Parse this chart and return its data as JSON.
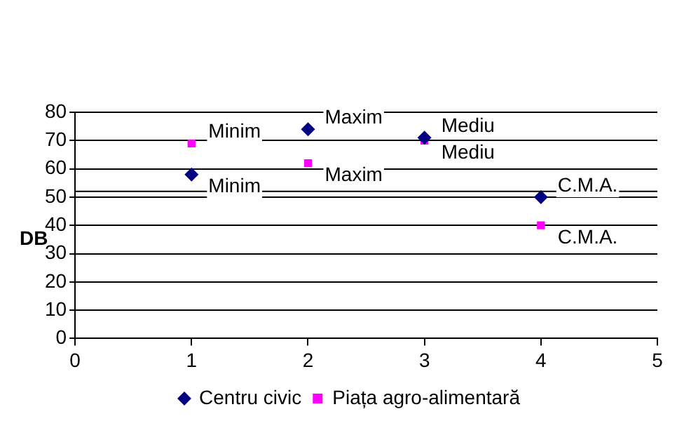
{
  "chart_data": {
    "type": "scatter",
    "ylabel": "DB",
    "xlim": [
      0,
      5
    ],
    "xticks": [
      0,
      1,
      2,
      3,
      4,
      5
    ],
    "ylim": [
      0,
      80
    ],
    "yticks": [
      0,
      10,
      20,
      30,
      40,
      50,
      60,
      70,
      80
    ],
    "grid": "y",
    "legend": "bottom",
    "series": [
      {
        "name": "Centru civic",
        "color": "#000080",
        "marker": "diamond",
        "x": [
          1,
          2,
          3,
          4
        ],
        "values": [
          58,
          74,
          71,
          50
        ],
        "value_labels": [
          "Minim",
          "Maxim",
          "Mediu",
          "C.M.A."
        ]
      },
      {
        "name": "Piața agro-alimentară",
        "color": "#ff00ff",
        "marker": "square",
        "x": [
          1,
          2,
          3,
          4
        ],
        "values": [
          69,
          62,
          70,
          40
        ],
        "value_labels": [
          "Minim",
          "Maxim",
          "Mediu",
          "C.M.A."
        ]
      }
    ],
    "ref_lines": [
      {
        "axis": "y",
        "value": 52,
        "color": "#000000"
      }
    ]
  }
}
